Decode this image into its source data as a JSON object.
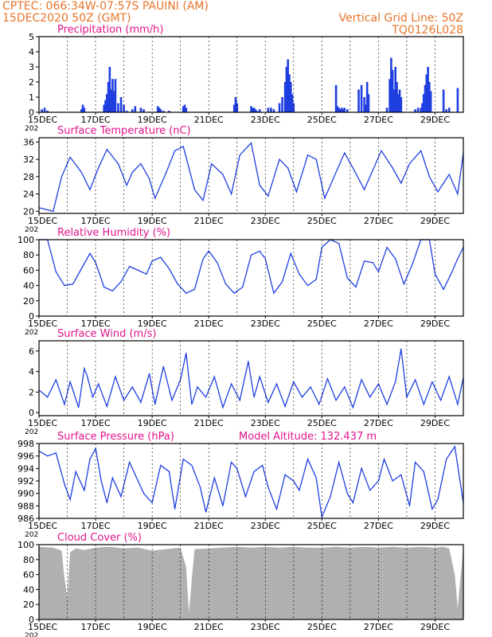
{
  "header": {
    "line1": "CPTEC:   066:34W-07:57S   PAUINI (AM)",
    "line2": "15DEC2020 50Z (GMT)",
    "right1": "Vertical Grid Line: 50Z",
    "right2": "TQ0126L028",
    "color": "#e8742a"
  },
  "colors": {
    "title": "#e0148c",
    "line": "#1f3fe0",
    "bar": "#1f3fe0",
    "cloud": "#b0b0b0",
    "grid": "#000000"
  },
  "x_axis": {
    "start": "15DEC",
    "end": "30DEC",
    "tick_labels": [
      "15DEC",
      "17DEC",
      "19DEC",
      "21DEC",
      "23DEC",
      "25DEC",
      "27DEC",
      "29DEC"
    ],
    "year_fragment": "202"
  },
  "chart_data": [
    {
      "type": "bar",
      "id": "precip",
      "title": "Precipitation (mm/h)",
      "ylim": [
        0,
        5
      ],
      "yticks": [
        0,
        1,
        2,
        3,
        4,
        5
      ],
      "x_units": "days since 15DEC",
      "x": [
        0.1,
        0.2,
        0.3,
        1.5,
        1.55,
        1.6,
        2.3,
        2.35,
        2.4,
        2.45,
        2.5,
        2.55,
        2.6,
        2.65,
        2.7,
        2.8,
        2.9,
        3.0,
        3.1,
        3.3,
        3.4,
        3.6,
        3.7,
        4.2,
        4.25,
        4.3,
        4.4,
        4.6,
        5.1,
        5.15,
        5.2,
        6.9,
        6.95,
        7.0,
        7.5,
        7.55,
        7.6,
        7.65,
        7.7,
        7.8,
        8.1,
        8.2,
        8.3,
        8.5,
        8.6,
        8.7,
        8.75,
        8.8,
        8.85,
        8.9,
        8.95,
        9.0,
        10.5,
        10.55,
        10.6,
        10.65,
        10.7,
        10.75,
        10.8,
        10.9,
        11.3,
        11.4,
        11.5,
        11.55,
        11.6,
        11.65,
        12.3,
        12.4,
        12.45,
        12.5,
        12.55,
        12.6,
        12.65,
        12.7,
        12.75,
        12.8,
        13.3,
        13.4,
        13.5,
        13.55,
        13.6,
        13.65,
        13.7,
        13.75,
        13.8,
        13.85,
        14.3,
        14.4,
        14.5,
        14.8
      ],
      "values": [
        0.2,
        0.3,
        0.1,
        0.2,
        0.5,
        0.3,
        0.5,
        0.8,
        1.2,
        2.0,
        3.0,
        1.5,
        2.2,
        1.4,
        2.2,
        0.6,
        1.0,
        0.5,
        0.1,
        0.2,
        0.4,
        0.3,
        0.2,
        0.4,
        0.3,
        0.2,
        0.1,
        0.1,
        0.4,
        0.5,
        0.3,
        0.5,
        1.0,
        0.6,
        0.4,
        0.3,
        0.3,
        0.2,
        0.1,
        0.2,
        0.3,
        0.3,
        0.2,
        0.6,
        1.0,
        2.0,
        3.0,
        3.5,
        2.5,
        2.0,
        1.2,
        0.6,
        1.8,
        0.4,
        0.3,
        0.2,
        0.3,
        0.2,
        0.3,
        0.2,
        1.5,
        1.8,
        1.0,
        0.5,
        2.0,
        1.2,
        0.3,
        2.2,
        3.6,
        2.8,
        1.5,
        3.0,
        2.0,
        1.2,
        1.5,
        1.0,
        0.2,
        0.3,
        0.3,
        0.6,
        1.2,
        1.8,
        2.5,
        3.0,
        2.0,
        1.4,
        1.5,
        0.2,
        0.3,
        1.6
      ]
    },
    {
      "type": "line",
      "id": "temp",
      "title": "Surface Temperature (nC)",
      "ylim": [
        19.5,
        37
      ],
      "yticks": [
        20,
        24,
        28,
        32,
        36
      ],
      "x_units": "days since 15DEC",
      "x": [
        0,
        0.5,
        0.8,
        1.1,
        1.5,
        1.8,
        2.1,
        2.4,
        2.8,
        3.1,
        3.3,
        3.6,
        3.9,
        4.1,
        4.5,
        4.8,
        5.1,
        5.5,
        5.8,
        6.1,
        6.5,
        6.8,
        7.1,
        7.5,
        7.8,
        8.1,
        8.5,
        8.8,
        9.1,
        9.5,
        9.8,
        10.1,
        10.5,
        10.8,
        11.1,
        11.5,
        11.8,
        12.1,
        12.5,
        12.8,
        13.1,
        13.5,
        13.8,
        14.1,
        14.5,
        14.8,
        15.0
      ],
      "values": [
        20.8,
        20.0,
        28.0,
        32.5,
        29.0,
        25.0,
        30.0,
        34.3,
        31.0,
        26.0,
        29.0,
        31.0,
        27.5,
        23.0,
        29.0,
        34.0,
        35.0,
        25.0,
        22.5,
        31.0,
        28.5,
        24.0,
        33.0,
        35.8,
        26.0,
        23.5,
        32.0,
        30.0,
        24.5,
        33.0,
        32.0,
        23.0,
        29.0,
        33.5,
        30.0,
        25.0,
        29.5,
        34.0,
        30.0,
        26.5,
        31.0,
        34.0,
        28.0,
        24.5,
        28.5,
        24.0,
        33.5
      ]
    },
    {
      "type": "line",
      "id": "rh",
      "title": "Relative Humidity (%)",
      "ylim": [
        0,
        100
      ],
      "yticks": [
        0,
        20,
        40,
        60,
        80,
        100
      ],
      "x_units": "days since 15DEC",
      "x": [
        0,
        0.3,
        0.6,
        0.9,
        1.2,
        1.5,
        1.8,
        2.0,
        2.3,
        2.6,
        2.9,
        3.2,
        3.5,
        3.8,
        4.0,
        4.3,
        4.6,
        4.9,
        5.2,
        5.5,
        5.8,
        6.0,
        6.3,
        6.6,
        6.9,
        7.2,
        7.5,
        7.8,
        8.0,
        8.3,
        8.6,
        8.9,
        9.2,
        9.5,
        9.8,
        10.0,
        10.3,
        10.6,
        10.9,
        11.2,
        11.5,
        11.8,
        12.0,
        12.3,
        12.6,
        12.9,
        13.2,
        13.5,
        13.8,
        14.0,
        14.3,
        14.6,
        14.8,
        15.0
      ],
      "values": [
        100,
        100,
        58,
        40,
        42,
        62,
        82,
        70,
        38,
        33,
        45,
        65,
        60,
        55,
        72,
        77,
        62,
        42,
        30,
        35,
        75,
        85,
        70,
        42,
        30,
        38,
        80,
        85,
        75,
        30,
        45,
        82,
        55,
        40,
        48,
        90,
        100,
        95,
        50,
        38,
        72,
        70,
        58,
        90,
        75,
        42,
        68,
        100,
        100,
        55,
        35,
        58,
        75,
        90
      ]
    },
    {
      "type": "line",
      "id": "wind",
      "title": "Surface Wind (m/s)",
      "ylim": [
        -0.3,
        7
      ],
      "yticks": [
        0,
        2,
        4,
        6
      ],
      "x_units": "days since 15DEC",
      "x": [
        0,
        0.3,
        0.6,
        0.9,
        1.1,
        1.4,
        1.6,
        1.7,
        1.9,
        2.1,
        2.4,
        2.7,
        3.0,
        3.3,
        3.6,
        3.9,
        4.1,
        4.4,
        4.7,
        5.0,
        5.2,
        5.4,
        5.6,
        5.9,
        6.2,
        6.5,
        6.8,
        7.1,
        7.4,
        7.6,
        7.8,
        8.1,
        8.4,
        8.7,
        9.0,
        9.3,
        9.6,
        9.9,
        10.2,
        10.5,
        10.8,
        11.1,
        11.4,
        11.7,
        12.0,
        12.3,
        12.6,
        12.8,
        13.0,
        13.3,
        13.6,
        13.9,
        14.2,
        14.5,
        14.8,
        15.0
      ],
      "values": [
        2.2,
        1.5,
        3.2,
        0.8,
        3.0,
        0.5,
        4.3,
        3.6,
        1.5,
        2.8,
        0.6,
        3.5,
        1.2,
        2.5,
        1.0,
        3.8,
        0.8,
        4.5,
        1.2,
        3.2,
        5.8,
        0.8,
        2.5,
        1.5,
        3.5,
        0.5,
        2.8,
        1.2,
        5.0,
        1.5,
        3.5,
        1.0,
        2.8,
        0.6,
        3.0,
        1.5,
        2.5,
        0.8,
        3.3,
        1.2,
        2.5,
        0.5,
        3.2,
        1.5,
        2.8,
        0.8,
        3.0,
        6.2,
        1.5,
        3.2,
        0.8,
        3.0,
        1.2,
        3.5,
        0.8,
        3.4
      ]
    },
    {
      "type": "line",
      "id": "pres",
      "title": "Surface Pressure (hPa)",
      "subtitle": "Model Altitude: 132.437  m",
      "ylim": [
        986,
        998
      ],
      "yticks": [
        986,
        988,
        990,
        992,
        994,
        996,
        998
      ],
      "x_units": "days since 15DEC",
      "x": [
        0,
        0.3,
        0.6,
        0.9,
        1.1,
        1.3,
        1.6,
        1.8,
        2.0,
        2.2,
        2.4,
        2.6,
        2.9,
        3.2,
        3.5,
        3.7,
        4.0,
        4.3,
        4.6,
        4.8,
        5.1,
        5.4,
        5.7,
        5.9,
        6.2,
        6.5,
        6.8,
        7.0,
        7.3,
        7.6,
        7.9,
        8.1,
        8.4,
        8.7,
        9.0,
        9.2,
        9.5,
        9.8,
        10.0,
        10.3,
        10.6,
        10.9,
        11.1,
        11.4,
        11.7,
        12.0,
        12.2,
        12.5,
        12.8,
        13.1,
        13.3,
        13.6,
        13.9,
        14.1,
        14.4,
        14.7,
        15.0
      ],
      "values": [
        996.8,
        996.0,
        996.5,
        991.5,
        989.0,
        993.5,
        990.5,
        995.5,
        997.2,
        992.0,
        988.5,
        992.5,
        989.5,
        995.0,
        992.0,
        990.0,
        988.5,
        994.5,
        993.5,
        987.5,
        995.5,
        994.5,
        991.0,
        987.0,
        992.5,
        988.0,
        995.0,
        994.0,
        989.5,
        993.5,
        994.5,
        991.0,
        987.5,
        993.0,
        992.0,
        990.5,
        995.5,
        992.5,
        986.2,
        989.5,
        995.0,
        990.0,
        988.5,
        994.0,
        990.5,
        992.0,
        995.5,
        992.0,
        993.0,
        988.0,
        995.0,
        993.5,
        987.5,
        989.0,
        995.5,
        997.5,
        988.5
      ]
    },
    {
      "type": "area",
      "id": "cloud",
      "title": "Cloud Cover (%)",
      "ylim": [
        0,
        100
      ],
      "yticks": [
        0,
        20,
        40,
        60,
        80,
        100
      ],
      "x_units": "days since 15DEC",
      "x": [
        0,
        0.5,
        0.8,
        0.9,
        1.0,
        1.1,
        1.3,
        1.6,
        2.0,
        2.5,
        3.0,
        3.5,
        4.0,
        4.5,
        5.0,
        5.2,
        5.3,
        5.5,
        6.0,
        6.5,
        7.0,
        7.5,
        8.0,
        8.5,
        9.0,
        9.5,
        10.0,
        10.5,
        11.0,
        11.5,
        12.0,
        12.5,
        13.0,
        13.5,
        14.0,
        14.3,
        14.5,
        14.7,
        14.8,
        15.0
      ],
      "values": [
        97,
        96,
        92,
        55,
        30,
        90,
        95,
        93,
        96,
        97,
        95,
        96,
        92,
        94,
        96,
        70,
        10,
        94,
        95,
        96,
        97,
        96,
        97,
        96,
        97,
        96,
        96,
        97,
        96,
        97,
        96,
        97,
        96,
        97,
        96,
        97,
        95,
        60,
        15,
        97
      ]
    }
  ]
}
